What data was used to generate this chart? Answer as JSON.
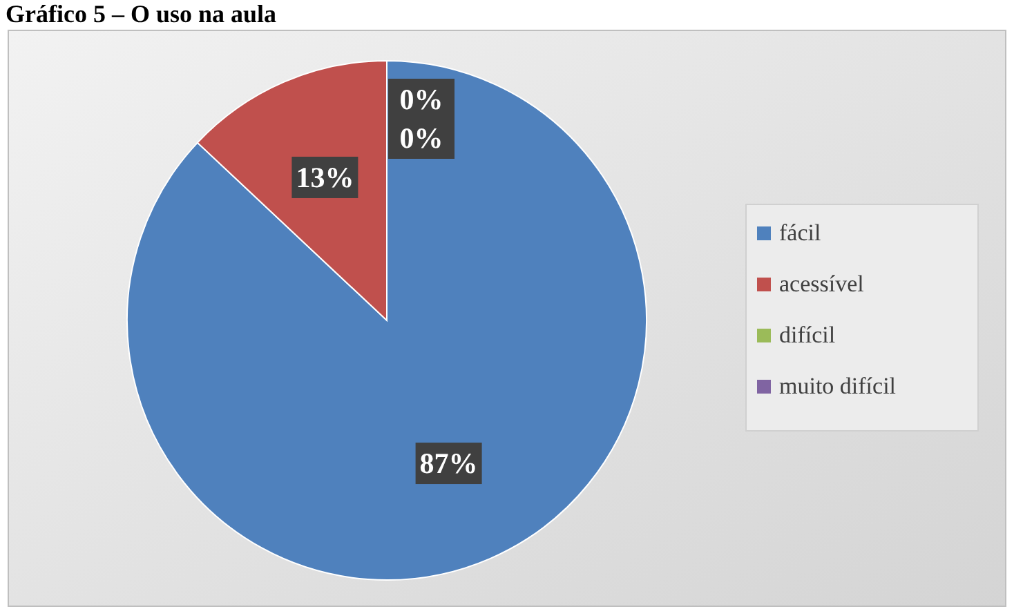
{
  "chart_data": {
    "type": "pie",
    "title": "Gráfico 5 – O uso na aula",
    "categories": [
      "fácil",
      "acessível",
      "difícil",
      "muito difícil"
    ],
    "values": [
      87,
      13,
      0,
      0
    ],
    "colors": [
      "#4f81bd",
      "#c0504d",
      "#9bbb59",
      "#8064a2"
    ],
    "value_labels": [
      "87%",
      "13%",
      "0%",
      "0%"
    ],
    "data_labels": true,
    "legend": "right"
  }
}
